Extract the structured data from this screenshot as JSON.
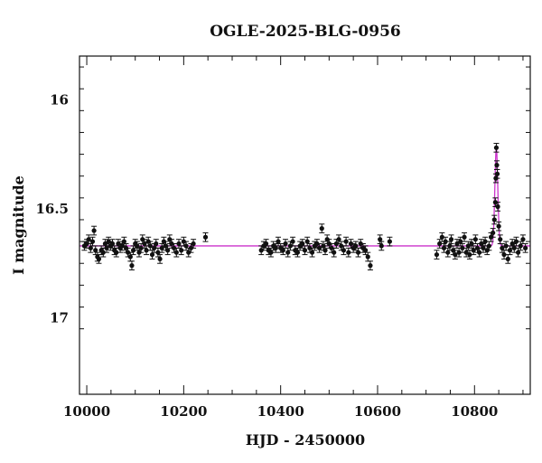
{
  "chart_data": {
    "type": "scatter",
    "title": "OGLE-2025-BLG-0956",
    "xlabel": "HJD - 2450000",
    "ylabel": "I magnitude",
    "xlim": [
      9985,
      10915
    ],
    "ylim": [
      17.35,
      15.8
    ],
    "y_inverted": true,
    "x_ticks": [
      10000,
      10200,
      10400,
      10600,
      10800
    ],
    "y_ticks": [
      16,
      16.5,
      17
    ],
    "y_tick_labels": [
      "16",
      "16.5",
      "17"
    ],
    "grid": false,
    "colors": {
      "points": "#111111",
      "model": "#cc33cc"
    },
    "model": {
      "baseline_mag": 16.67,
      "peak_time": 10845,
      "peak_mag": 16.22,
      "width_days": 3
    },
    "series": [
      {
        "points": [
          [
            9995,
            16.67,
            0.02
          ],
          [
            10000,
            16.66,
            0.02
          ],
          [
            10004,
            16.64,
            0.02
          ],
          [
            10008,
            16.68,
            0.02
          ],
          [
            10012,
            16.65,
            0.02
          ],
          [
            10015,
            16.6,
            0.02
          ],
          [
            10018,
            16.69,
            0.02
          ],
          [
            10022,
            16.72,
            0.02
          ],
          [
            10025,
            16.73,
            0.02
          ],
          [
            10030,
            16.69,
            0.02
          ],
          [
            10034,
            16.7,
            0.02
          ],
          [
            10038,
            16.66,
            0.02
          ],
          [
            10041,
            16.68,
            0.02
          ],
          [
            10045,
            16.65,
            0.02
          ],
          [
            10049,
            16.67,
            0.02
          ],
          [
            10053,
            16.66,
            0.02
          ],
          [
            10057,
            16.69,
            0.02
          ],
          [
            10061,
            16.7,
            0.02
          ],
          [
            10065,
            16.66,
            0.02
          ],
          [
            10069,
            16.68,
            0.02
          ],
          [
            10073,
            16.67,
            0.02
          ],
          [
            10077,
            16.65,
            0.02
          ],
          [
            10081,
            16.68,
            0.02
          ],
          [
            10085,
            16.7,
            0.02
          ],
          [
            10090,
            16.72,
            0.02
          ],
          [
            10093,
            16.76,
            0.02
          ],
          [
            10096,
            16.69,
            0.02
          ],
          [
            10100,
            16.66,
            0.02
          ],
          [
            10104,
            16.67,
            0.02
          ],
          [
            10108,
            16.7,
            0.02
          ],
          [
            10112,
            16.68,
            0.02
          ],
          [
            10115,
            16.64,
            0.02
          ],
          [
            10119,
            16.66,
            0.02
          ],
          [
            10123,
            16.69,
            0.02
          ],
          [
            10127,
            16.65,
            0.02
          ],
          [
            10131,
            16.67,
            0.02
          ],
          [
            10135,
            16.71,
            0.02
          ],
          [
            10139,
            16.68,
            0.02
          ],
          [
            10143,
            16.66,
            0.02
          ],
          [
            10147,
            16.7,
            0.02
          ],
          [
            10151,
            16.73,
            0.02
          ],
          [
            10155,
            16.68,
            0.02
          ],
          [
            10159,
            16.65,
            0.02
          ],
          [
            10163,
            16.67,
            0.02
          ],
          [
            10167,
            16.69,
            0.02
          ],
          [
            10171,
            16.64,
            0.02
          ],
          [
            10175,
            16.66,
            0.02
          ],
          [
            10180,
            16.68,
            0.02
          ],
          [
            10185,
            16.7,
            0.02
          ],
          [
            10190,
            16.66,
            0.02
          ],
          [
            10195,
            16.69,
            0.02
          ],
          [
            10200,
            16.65,
            0.02
          ],
          [
            10205,
            16.67,
            0.02
          ],
          [
            10210,
            16.7,
            0.02
          ],
          [
            10215,
            16.68,
            0.02
          ],
          [
            10220,
            16.66,
            0.02
          ],
          [
            10245,
            16.63,
            0.02
          ],
          [
            10360,
            16.69,
            0.02
          ],
          [
            10365,
            16.67,
            0.02
          ],
          [
            10370,
            16.66,
            0.02
          ],
          [
            10375,
            16.69,
            0.02
          ],
          [
            10380,
            16.7,
            0.02
          ],
          [
            10385,
            16.67,
            0.02
          ],
          [
            10390,
            16.68,
            0.02
          ],
          [
            10395,
            16.65,
            0.02
          ],
          [
            10400,
            16.68,
            0.02
          ],
          [
            10405,
            16.69,
            0.02
          ],
          [
            10410,
            16.66,
            0.02
          ],
          [
            10415,
            16.7,
            0.02
          ],
          [
            10420,
            16.67,
            0.02
          ],
          [
            10425,
            16.65,
            0.02
          ],
          [
            10430,
            16.69,
            0.02
          ],
          [
            10435,
            16.7,
            0.02
          ],
          [
            10440,
            16.67,
            0.02
          ],
          [
            10445,
            16.66,
            0.02
          ],
          [
            10450,
            16.69,
            0.02
          ],
          [
            10455,
            16.65,
            0.02
          ],
          [
            10460,
            16.68,
            0.02
          ],
          [
            10465,
            16.7,
            0.02
          ],
          [
            10470,
            16.67,
            0.02
          ],
          [
            10475,
            16.66,
            0.02
          ],
          [
            10480,
            16.68,
            0.02
          ],
          [
            10485,
            16.59,
            0.02
          ],
          [
            10488,
            16.67,
            0.02
          ],
          [
            10492,
            16.69,
            0.02
          ],
          [
            10496,
            16.64,
            0.02
          ],
          [
            10500,
            16.66,
            0.02
          ],
          [
            10505,
            16.68,
            0.02
          ],
          [
            10510,
            16.7,
            0.02
          ],
          [
            10515,
            16.66,
            0.02
          ],
          [
            10520,
            16.64,
            0.02
          ],
          [
            10525,
            16.67,
            0.02
          ],
          [
            10530,
            16.69,
            0.02
          ],
          [
            10535,
            16.65,
            0.02
          ],
          [
            10540,
            16.7,
            0.02
          ],
          [
            10545,
            16.66,
            0.02
          ],
          [
            10550,
            16.68,
            0.02
          ],
          [
            10555,
            16.67,
            0.02
          ],
          [
            10560,
            16.7,
            0.02
          ],
          [
            10565,
            16.66,
            0.02
          ],
          [
            10570,
            16.68,
            0.02
          ],
          [
            10575,
            16.69,
            0.02
          ],
          [
            10580,
            16.72,
            0.02
          ],
          [
            10585,
            16.76,
            0.02
          ],
          [
            10605,
            16.64,
            0.02
          ],
          [
            10608,
            16.67,
            0.02
          ],
          [
            10625,
            16.65,
            0.02
          ],
          [
            10722,
            16.71,
            0.02
          ],
          [
            10728,
            16.66,
            0.02
          ],
          [
            10733,
            16.63,
            0.02
          ],
          [
            10737,
            16.68,
            0.02
          ],
          [
            10740,
            16.65,
            0.02
          ],
          [
            10745,
            16.7,
            0.02
          ],
          [
            10749,
            16.67,
            0.02
          ],
          [
            10752,
            16.64,
            0.02
          ],
          [
            10756,
            16.69,
            0.02
          ],
          [
            10760,
            16.71,
            0.02
          ],
          [
            10764,
            16.66,
            0.02
          ],
          [
            10768,
            16.7,
            0.02
          ],
          [
            10771,
            16.65,
            0.02
          ],
          [
            10775,
            16.68,
            0.02
          ],
          [
            10779,
            16.63,
            0.02
          ],
          [
            10783,
            16.7,
            0.02
          ],
          [
            10787,
            16.67,
            0.02
          ],
          [
            10790,
            16.71,
            0.02
          ],
          [
            10794,
            16.66,
            0.02
          ],
          [
            10798,
            16.69,
            0.02
          ],
          [
            10802,
            16.64,
            0.02
          ],
          [
            10806,
            16.68,
            0.02
          ],
          [
            10810,
            16.7,
            0.02
          ],
          [
            10814,
            16.66,
            0.02
          ],
          [
            10818,
            16.68,
            0.02
          ],
          [
            10822,
            16.65,
            0.02
          ],
          [
            10826,
            16.69,
            0.02
          ],
          [
            10830,
            16.67,
            0.02
          ],
          [
            10834,
            16.63,
            0.02
          ],
          [
            10838,
            16.61,
            0.02
          ],
          [
            10841,
            16.55,
            0.02
          ],
          [
            10843,
            16.47,
            0.02
          ],
          [
            10844,
            16.36,
            0.02
          ],
          [
            10845,
            16.22,
            0.02
          ],
          [
            10846,
            16.3,
            0.02
          ],
          [
            10847,
            16.34,
            0.02
          ],
          [
            10848,
            16.49,
            0.02
          ],
          [
            10850,
            16.58,
            0.02
          ],
          [
            10853,
            16.64,
            0.02
          ],
          [
            10857,
            16.68,
            0.02
          ],
          [
            10861,
            16.71,
            0.02
          ],
          [
            10865,
            16.67,
            0.02
          ],
          [
            10869,
            16.73,
            0.02
          ],
          [
            10873,
            16.69,
            0.02
          ],
          [
            10878,
            16.66,
            0.02
          ],
          [
            10882,
            16.68,
            0.02
          ],
          [
            10886,
            16.65,
            0.02
          ],
          [
            10890,
            16.7,
            0.02
          ],
          [
            10895,
            16.67,
            0.02
          ],
          [
            10900,
            16.64,
            0.02
          ],
          [
            10905,
            16.68,
            0.02
          ]
        ]
      }
    ]
  }
}
